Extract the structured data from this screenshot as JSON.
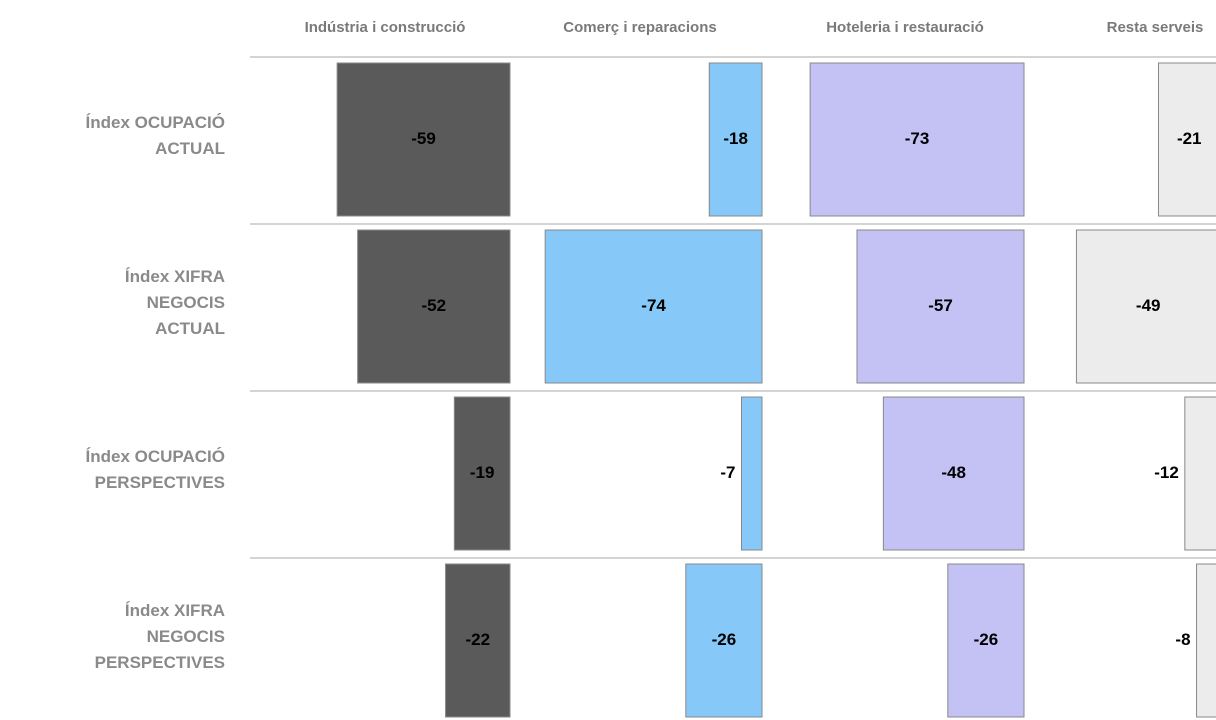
{
  "chart_data": {
    "type": "bar",
    "categories": [
      [
        "Índex OCUPACIÓ",
        "ACTUAL"
      ],
      [
        "Índex XIFRA",
        "NEGOCIS",
        "ACTUAL"
      ],
      [
        "Índex OCUPACIÓ",
        "PERSPECTIVES"
      ],
      [
        "Índex XIFRA",
        "NEGOCIS",
        "PERSPECTIVES"
      ]
    ],
    "series": [
      {
        "name": "Indústria i construcció",
        "color": "#5a5a5a",
        "values": [
          -59,
          -52,
          -19,
          -22
        ]
      },
      {
        "name": "Comerç i reparacions",
        "color": "#86c8f7",
        "values": [
          -18,
          -74,
          -7,
          -26
        ]
      },
      {
        "name": "Hoteleria i restauració",
        "color": "#c4c2f4",
        "values": [
          -73,
          -57,
          -48,
          -26
        ]
      },
      {
        "name": "Resta serveis",
        "color": "#ececec",
        "values": [
          -21,
          -49,
          -12,
          -8
        ]
      }
    ]
  }
}
